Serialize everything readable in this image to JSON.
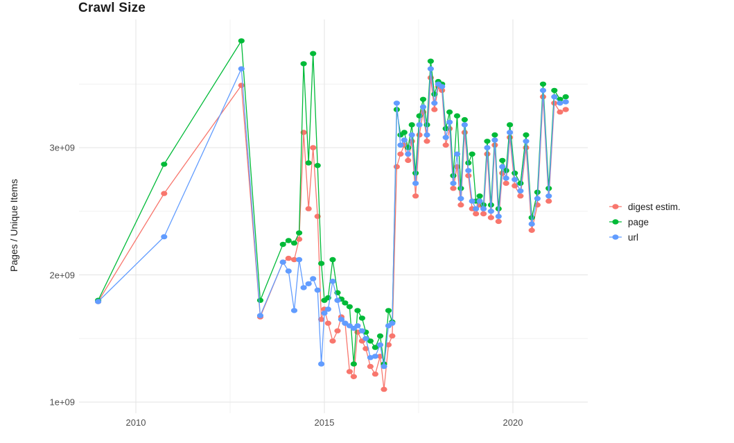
{
  "title": "Crawl Size",
  "axes": {
    "y_label": "Pages / Unique Items",
    "y_ticks": [
      "1e+09",
      "2e+09",
      "3e+09"
    ],
    "x_ticks": [
      "2010",
      "2015",
      "2020"
    ]
  },
  "legend": [
    {
      "key": "digest",
      "label": "digest estim.",
      "color": "#F8766D"
    },
    {
      "key": "page",
      "label": "page",
      "color": "#00BA38"
    },
    {
      "key": "url",
      "label": "url",
      "color": "#619CFF"
    }
  ],
  "chart_data": {
    "type": "line",
    "title": "Crawl Size",
    "xlabel": "",
    "ylabel": "Pages / Unique Items",
    "x_unit": "decimal year",
    "y_unit": "pages / unique items (values_billions are in units of 1e9)",
    "xlim": [
      2008.5,
      2021.95
    ],
    "ylim_billions": [
      0.92,
      4.0
    ],
    "grid": {
      "x_major": [
        2010,
        2015,
        2020
      ],
      "x_minor": [
        2012.5,
        2017.5
      ],
      "y_major_billions": [
        1,
        2,
        3
      ],
      "y_minor_billions": [
        1.5,
        2.5,
        3.5
      ]
    },
    "legend_position": "right",
    "x": [
      2009.0,
      2010.75,
      2012.8,
      2013.3,
      2013.9,
      2014.05,
      2014.2,
      2014.33,
      2014.45,
      2014.58,
      2014.7,
      2014.82,
      2014.92,
      2015.0,
      2015.1,
      2015.22,
      2015.35,
      2015.45,
      2015.55,
      2015.67,
      2015.78,
      2015.88,
      2016.0,
      2016.1,
      2016.22,
      2016.35,
      2016.48,
      2016.58,
      2016.7,
      2016.8,
      2016.92,
      2017.02,
      2017.12,
      2017.22,
      2017.32,
      2017.42,
      2017.52,
      2017.62,
      2017.72,
      2017.82,
      2017.92,
      2018.02,
      2018.12,
      2018.22,
      2018.32,
      2018.42,
      2018.52,
      2018.62,
      2018.72,
      2018.82,
      2018.92,
      2019.02,
      2019.12,
      2019.22,
      2019.32,
      2019.42,
      2019.52,
      2019.62,
      2019.72,
      2019.82,
      2019.92,
      2020.05,
      2020.2,
      2020.35,
      2020.5,
      2020.65,
      2020.8,
      2020.95,
      2021.1,
      2021.25,
      2021.4
    ],
    "series": [
      {
        "key": "digest",
        "name": "digest estim.",
        "color": "#F8766D",
        "values_billions": [
          1.79,
          2.64,
          3.49,
          1.67,
          2.1,
          2.13,
          2.12,
          2.28,
          3.12,
          2.52,
          3.0,
          2.46,
          1.65,
          1.73,
          1.62,
          1.48,
          1.56,
          1.67,
          1.62,
          1.24,
          1.2,
          1.55,
          1.48,
          1.42,
          1.28,
          1.22,
          1.36,
          1.1,
          1.45,
          1.52,
          2.85,
          2.95,
          3.02,
          2.9,
          3.05,
          2.62,
          3.1,
          3.28,
          3.05,
          3.55,
          3.3,
          3.48,
          3.45,
          3.02,
          3.15,
          2.68,
          2.85,
          2.55,
          3.12,
          2.78,
          2.52,
          2.48,
          2.55,
          2.48,
          2.95,
          2.45,
          3.02,
          2.42,
          2.8,
          2.72,
          3.08,
          2.7,
          2.62,
          3.0,
          2.35,
          2.55,
          3.4,
          2.58,
          3.35,
          3.28,
          3.3
        ]
      },
      {
        "key": "page",
        "name": "page",
        "color": "#00BA38",
        "values_billions": [
          1.8,
          2.87,
          3.84,
          1.8,
          2.24,
          2.27,
          2.25,
          2.33,
          3.66,
          2.88,
          3.74,
          2.86,
          2.09,
          1.8,
          1.82,
          2.12,
          1.86,
          1.81,
          1.78,
          1.75,
          1.3,
          1.72,
          1.66,
          1.55,
          1.48,
          1.43,
          1.52,
          1.3,
          1.72,
          1.63,
          3.3,
          3.1,
          3.12,
          3.0,
          3.18,
          2.8,
          3.25,
          3.38,
          3.18,
          3.68,
          3.42,
          3.52,
          3.5,
          3.15,
          3.28,
          2.78,
          3.25,
          2.68,
          3.22,
          2.88,
          2.95,
          2.58,
          2.62,
          2.55,
          3.05,
          2.55,
          3.1,
          2.52,
          2.9,
          2.82,
          3.18,
          2.8,
          2.72,
          3.1,
          2.45,
          2.65,
          3.5,
          2.68,
          3.45,
          3.38,
          3.4
        ]
      },
      {
        "key": "url",
        "name": "url",
        "color": "#619CFF",
        "values_billions": [
          1.79,
          2.3,
          3.62,
          1.68,
          2.1,
          2.03,
          1.72,
          2.12,
          1.9,
          1.93,
          1.97,
          1.88,
          1.3,
          1.7,
          1.73,
          1.95,
          1.8,
          1.65,
          1.62,
          1.6,
          1.58,
          1.6,
          1.56,
          1.5,
          1.35,
          1.36,
          1.45,
          1.28,
          1.6,
          1.62,
          3.35,
          3.02,
          3.06,
          2.95,
          3.1,
          2.72,
          3.18,
          3.32,
          3.1,
          3.62,
          3.35,
          3.5,
          3.48,
          3.08,
          3.2,
          2.72,
          2.95,
          2.6,
          3.18,
          2.82,
          2.58,
          2.52,
          2.58,
          2.52,
          3.0,
          2.5,
          3.06,
          2.46,
          2.85,
          2.76,
          3.12,
          2.75,
          2.66,
          3.05,
          2.4,
          2.6,
          3.45,
          2.62,
          3.4,
          3.35,
          3.36
        ]
      }
    ]
  }
}
